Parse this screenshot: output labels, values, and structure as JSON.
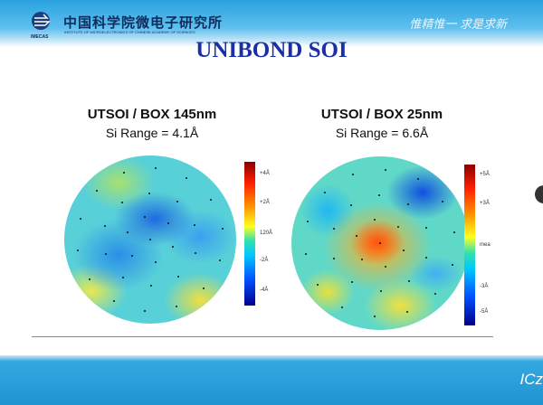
{
  "header": {
    "org_cn": "中国科学院微电子研究所",
    "org_en": "INSTITUTE OF MICROELECTRONICS OF CHINESE ACADEMY OF SCIENCES",
    "logo_text": "IMECAS",
    "motto": "惟精惟一  求是求新"
  },
  "slide": {
    "title": "UNIBOND SOI"
  },
  "maps": [
    {
      "title": "UTSOI / BOX 145nm",
      "range": "Si Range = 4.1Å",
      "colorbar_ticks": [
        "+4Å",
        "+2Å",
        "120Å",
        "-2Å",
        "-4Å"
      ]
    },
    {
      "title": "UTSOI / BOX 25nm",
      "range": "Si Range = 6.6Å",
      "colorbar_ticks": [
        "+5Å",
        "+3Å",
        "mea",
        "-3Å",
        "-5Å"
      ]
    }
  ],
  "footer": {
    "text": "ICz"
  }
}
